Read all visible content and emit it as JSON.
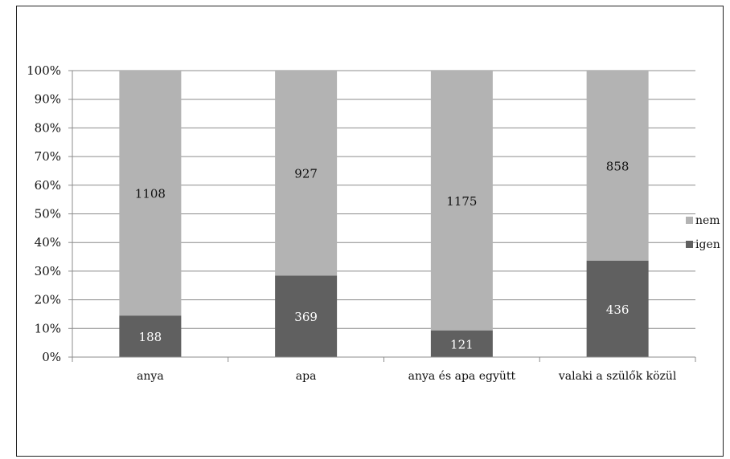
{
  "chart_data": {
    "type": "bar",
    "stacked": "percent",
    "title": "",
    "xlabel": "",
    "ylabel": "",
    "categories": [
      "anya",
      "apa",
      "anya és apa együtt",
      "valaki a szülők közül"
    ],
    "series": [
      {
        "name": "igen",
        "values": [
          188,
          369,
          121,
          436
        ],
        "color": "#606060",
        "label_color": "#ffffff"
      },
      {
        "name": "nem",
        "values": [
          1108,
          927,
          1175,
          858
        ],
        "color": "#b3b3b3",
        "label_color": "#111111"
      }
    ],
    "ylim": [
      0,
      100
    ],
    "y_ticks": [
      "0%",
      "10%",
      "20%",
      "30%",
      "40%",
      "50%",
      "60%",
      "70%",
      "80%",
      "90%",
      "100%"
    ],
    "grid": true,
    "legend_position": "right"
  }
}
